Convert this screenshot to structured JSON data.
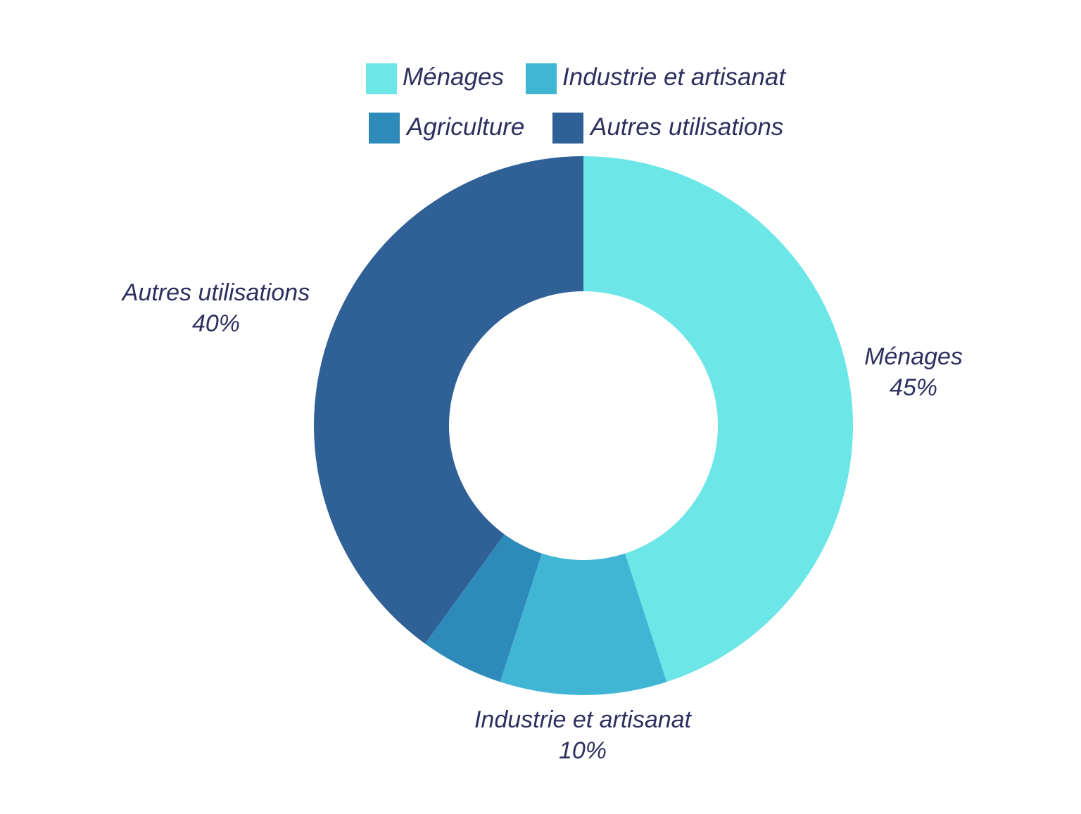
{
  "chart_data": {
    "type": "pie",
    "subtype": "donut",
    "legend_position": "top",
    "categories": [
      "Ménages",
      "Industrie et artisanat",
      "Agriculture",
      "Autres utilisations"
    ],
    "values": [
      45,
      10,
      5,
      40
    ],
    "value_labels": [
      "45%",
      "10%",
      "",
      "40%"
    ],
    "colors": [
      "#6de6e8",
      "#41b6d4",
      "#2e8bb9",
      "#2f6096"
    ]
  }
}
